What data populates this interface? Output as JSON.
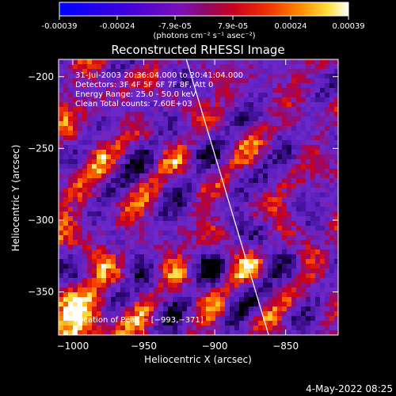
{
  "colorbar": {
    "tick_labels": [
      "-0.00039",
      "-0.00024",
      "-7.9e-05",
      "7.9e-05",
      "0.00024",
      "0.00039"
    ],
    "range": [
      -0.00039,
      0.00039
    ],
    "units_label": "(photons cm⁻² s⁻¹ asec⁻²)"
  },
  "chart_data": {
    "type": "heatmap",
    "title": "Reconstructed RHESSI Image",
    "xlabel": "Heliocentric X (arcsec)",
    "ylabel": "Heliocentric Y (arcsec)",
    "xlim": [
      -1010,
      -813
    ],
    "ylim": [
      -380,
      -188
    ],
    "x_ticks": [
      -1000,
      -950,
      -900,
      -850
    ],
    "y_ticks": [
      -350,
      -300,
      -250,
      -200
    ],
    "x_tick_labels": [
      "−1000",
      "−950",
      "−900",
      "−850"
    ],
    "y_tick_labels": [
      "−350",
      "−300",
      "−250",
      "−200"
    ],
    "annotations": [
      "31-Jul-2003 20:36:04.000 to 20:41:04.000",
      "Detectors: 3F 4F 5F 6F 7F 8F, Att 0",
      "Energy Range: 25.0 - 50.0 keV",
      "Clean    Total counts: 7.60E+03"
    ],
    "peak_label": "Location of Peak = [−993,−371]",
    "peak": [
      -993,
      -371
    ],
    "limb_line": [
      [
        -920,
        -188
      ],
      [
        -862,
        -380
      ]
    ],
    "colormap": "blue-purple-red-yellow-white"
  },
  "footer": {
    "timestamp": "4-May-2022 08:25"
  }
}
